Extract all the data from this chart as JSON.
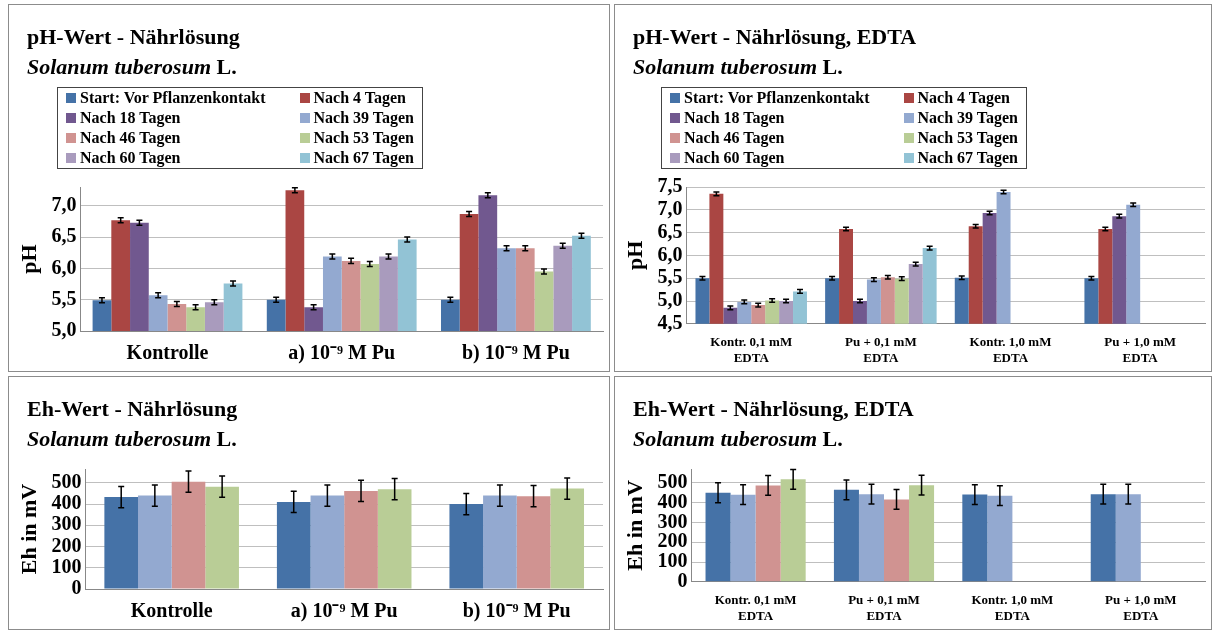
{
  "chart_data": [
    {
      "type": "bar",
      "title": "pH-Wert - Nährlösung",
      "subtitle": "Solanum tuberosum L.",
      "ylabel": "pH",
      "categories": [
        "Kontrolle",
        "a) 10⁻⁹ M Pu",
        "b) 10⁻⁹ M Pu"
      ],
      "ylim": [
        5,
        7.3
      ],
      "yticks": [
        {
          "value": 5,
          "label": "5,0"
        },
        {
          "value": 5.5,
          "label": "5,5"
        },
        {
          "value": 6,
          "label": "6,0"
        },
        {
          "value": 6.5,
          "label": "6,5"
        },
        {
          "value": 7,
          "label": "7,0"
        }
      ],
      "grid": "y",
      "legend": "top",
      "series": [
        {
          "name": "Start: Vor Pflanzenkontakt",
          "color": "#4572a7",
          "values": [
            5.49,
            5.5,
            5.5
          ],
          "errors": [
            0.04,
            0.04,
            0.04
          ]
        },
        {
          "name": "Nach 4 Tagen",
          "color": "#aa4643",
          "values": [
            6.77,
            7.25,
            6.87
          ],
          "errors": [
            0.04,
            0.04,
            0.04
          ]
        },
        {
          "name": "Nach 18 Tagen",
          "color": "#71588f",
          "values": [
            6.73,
            5.38,
            7.17
          ],
          "errors": [
            0.04,
            0.04,
            0.04
          ]
        },
        {
          "name": "Nach 39 Tagen",
          "color": "#93a9d0",
          "values": [
            5.57,
            6.19,
            6.32
          ],
          "errors": [
            0.04,
            0.04,
            0.04
          ]
        },
        {
          "name": "Nach 46 Tagen",
          "color": "#d09391",
          "values": [
            5.43,
            6.12,
            6.32
          ],
          "errors": [
            0.04,
            0.04,
            0.04
          ]
        },
        {
          "name": "Nach 53 Tagen",
          "color": "#b9cd96",
          "values": [
            5.38,
            6.07,
            5.95
          ],
          "errors": [
            0.04,
            0.04,
            0.04
          ]
        },
        {
          "name": "Nach 60 Tagen",
          "color": "#a99bbd",
          "values": [
            5.46,
            6.19,
            6.36
          ],
          "errors": [
            0.04,
            0.04,
            0.04
          ]
        },
        {
          "name": "Nach 67 Tagen",
          "color": "#92c3d5",
          "values": [
            5.76,
            6.46,
            6.52
          ],
          "errors": [
            0.04,
            0.04,
            0.04
          ]
        }
      ]
    },
    {
      "type": "bar",
      "title": "pH-Wert - Nährlösung, EDTA",
      "subtitle": "Solanum tuberosum L.",
      "ylabel": "pH",
      "categories": [
        "Kontr. 0,1 mM\nEDTA",
        "Pu + 0,1 mM\nEDTA",
        "Kontr. 1,0 mM\nEDTA",
        "Pu + 1,0 mM\nEDTA"
      ],
      "ylim": [
        4.5,
        7.5
      ],
      "yticks": [
        {
          "value": 4.5,
          "label": "4,5"
        },
        {
          "value": 5,
          "label": "5,0"
        },
        {
          "value": 5.5,
          "label": "5,5"
        },
        {
          "value": 6,
          "label": "6,0"
        },
        {
          "value": 6.5,
          "label": "6,5"
        },
        {
          "value": 7,
          "label": "7,0"
        },
        {
          "value": 7.5,
          "label": "7,5"
        }
      ],
      "grid": "y",
      "legend": "top",
      "series": [
        {
          "name": "Start: Vor Pflanzenkontakt",
          "color": "#4572a7",
          "values": [
            5.5,
            5.5,
            5.51,
            5.5
          ],
          "errors": [
            0.04,
            0.04,
            0.04,
            0.04
          ]
        },
        {
          "name": "Nach 4 Tagen",
          "color": "#aa4643",
          "values": [
            7.35,
            6.58,
            6.64,
            6.58
          ],
          "errors": [
            0.04,
            0.04,
            0.04,
            0.04
          ]
        },
        {
          "name": "Nach 18 Tagen",
          "color": "#71588f",
          "values": [
            4.85,
            5.0,
            6.93,
            6.86
          ],
          "errors": [
            0.04,
            0.04,
            0.04,
            0.04
          ]
        },
        {
          "name": "Nach 39 Tagen",
          "color": "#93a9d0",
          "values": [
            4.98,
            5.47,
            7.39,
            7.11
          ],
          "errors": [
            0.04,
            0.04,
            0.04,
            0.04
          ]
        },
        {
          "name": "Nach 46 Tagen",
          "color": "#d09391",
          "values": [
            4.91,
            5.52,
            null,
            null
          ],
          "errors": [
            0.04,
            0.04,
            null,
            null
          ]
        },
        {
          "name": "Nach 53 Tagen",
          "color": "#b9cd96",
          "values": [
            5.01,
            5.49,
            null,
            null
          ],
          "errors": [
            0.04,
            0.04,
            null,
            null
          ]
        },
        {
          "name": "Nach 60 Tagen",
          "color": "#a99bbd",
          "values": [
            5.0,
            5.81,
            null,
            null
          ],
          "errors": [
            0.04,
            0.04,
            null,
            null
          ]
        },
        {
          "name": "Nach 67 Tagen",
          "color": "#92c3d5",
          "values": [
            5.21,
            6.16,
            null,
            null
          ],
          "errors": [
            0.04,
            0.04,
            null,
            null
          ]
        }
      ]
    },
    {
      "type": "bar",
      "title": "Eh-Wert - Nährlösung",
      "subtitle": "Solanum tuberosum L.",
      "ylabel": "Eh in mV",
      "categories": [
        "Kontrolle",
        "a) 10⁻⁹ M Pu",
        "b) 10⁻⁹ M Pu"
      ],
      "ylim": [
        0,
        565
      ],
      "yticks": [
        0,
        100,
        200,
        300,
        400,
        500
      ],
      "grid": "y",
      "series": [
        {
          "color": "#4572a7",
          "values": [
            433,
            410,
            400
          ],
          "errors": [
            50,
            50,
            50
          ]
        },
        {
          "color": "#93a9d0",
          "values": [
            440,
            440,
            440
          ],
          "errors": [
            50,
            50,
            50
          ]
        },
        {
          "color": "#d09391",
          "values": [
            505,
            462,
            437
          ],
          "errors": [
            50,
            50,
            50
          ]
        },
        {
          "color": "#b9cd96",
          "values": [
            482,
            470,
            473
          ],
          "errors": [
            50,
            50,
            50
          ]
        }
      ]
    },
    {
      "type": "bar",
      "title": "Eh-Wert - Nährlösung, EDTA",
      "subtitle": "Solanum tuberosum L.",
      "ylabel": "Eh in mV",
      "categories": [
        "Kontr. 0,1 mM\nEDTA",
        "Pu + 0,1 mM\nEDTA",
        "Kontr. 1,0 mM\nEDTA",
        "Pu + 1,0 mM\nEDTA"
      ],
      "ylim": [
        0,
        570
      ],
      "yticks": [
        0,
        100,
        200,
        300,
        400,
        500
      ],
      "grid": "y",
      "series": [
        {
          "color": "#4572a7",
          "values": [
            450,
            465,
            441,
            443
          ],
          "errors": [
            50,
            50,
            50,
            50
          ]
        },
        {
          "color": "#93a9d0",
          "values": [
            440,
            443,
            435,
            443
          ],
          "errors": [
            50,
            50,
            50,
            50
          ]
        },
        {
          "color": "#d09391",
          "values": [
            487,
            416,
            null,
            null
          ],
          "errors": [
            50,
            50,
            null,
            null
          ]
        },
        {
          "color": "#b9cd96",
          "values": [
            518,
            488,
            null,
            null
          ],
          "errors": [
            50,
            50,
            null,
            null
          ]
        }
      ]
    }
  ]
}
